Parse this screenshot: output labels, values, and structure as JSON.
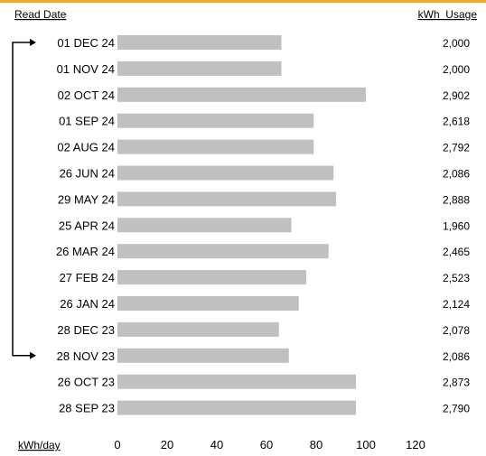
{
  "chart_data": {
    "type": "bar",
    "orientation": "horizontal",
    "header_left": "Read Date",
    "header_right": "kWh  Usage",
    "xlabel": "kWh/day",
    "xlim": [
      0,
      120
    ],
    "xticks": [
      0,
      20,
      40,
      60,
      80,
      100,
      120
    ],
    "bar_color": "#c0c0c0",
    "accent_color": "#f0a830",
    "bracket_from": "01 DEC 24",
    "bracket_to": "28 NOV 23",
    "rows": [
      {
        "date": "01 DEC 24",
        "kwh_per_day": 66,
        "usage": "2,000"
      },
      {
        "date": "01 NOV 24",
        "kwh_per_day": 66,
        "usage": "2,000"
      },
      {
        "date": "02 OCT 24",
        "kwh_per_day": 100,
        "usage": "2,902"
      },
      {
        "date": "01 SEP 24",
        "kwh_per_day": 79,
        "usage": "2,618"
      },
      {
        "date": "02 AUG 24",
        "kwh_per_day": 79,
        "usage": "2,792"
      },
      {
        "date": "26 JUN 24",
        "kwh_per_day": 87,
        "usage": "2,086"
      },
      {
        "date": "29 MAY 24",
        "kwh_per_day": 88,
        "usage": "2,888"
      },
      {
        "date": "25 APR 24",
        "kwh_per_day": 70,
        "usage": "1,960"
      },
      {
        "date": "26 MAR 24",
        "kwh_per_day": 85,
        "usage": "2,465"
      },
      {
        "date": "27 FEB 24",
        "kwh_per_day": 76,
        "usage": "2,523"
      },
      {
        "date": "26 JAN 24",
        "kwh_per_day": 73,
        "usage": "2,124"
      },
      {
        "date": "28 DEC 23",
        "kwh_per_day": 65,
        "usage": "2,078"
      },
      {
        "date": "28 NOV 23",
        "kwh_per_day": 69,
        "usage": "2,086"
      },
      {
        "date": "26 OCT 23",
        "kwh_per_day": 96,
        "usage": "2,873"
      },
      {
        "date": "28 SEP 23",
        "kwh_per_day": 96,
        "usage": "2,790"
      }
    ]
  }
}
